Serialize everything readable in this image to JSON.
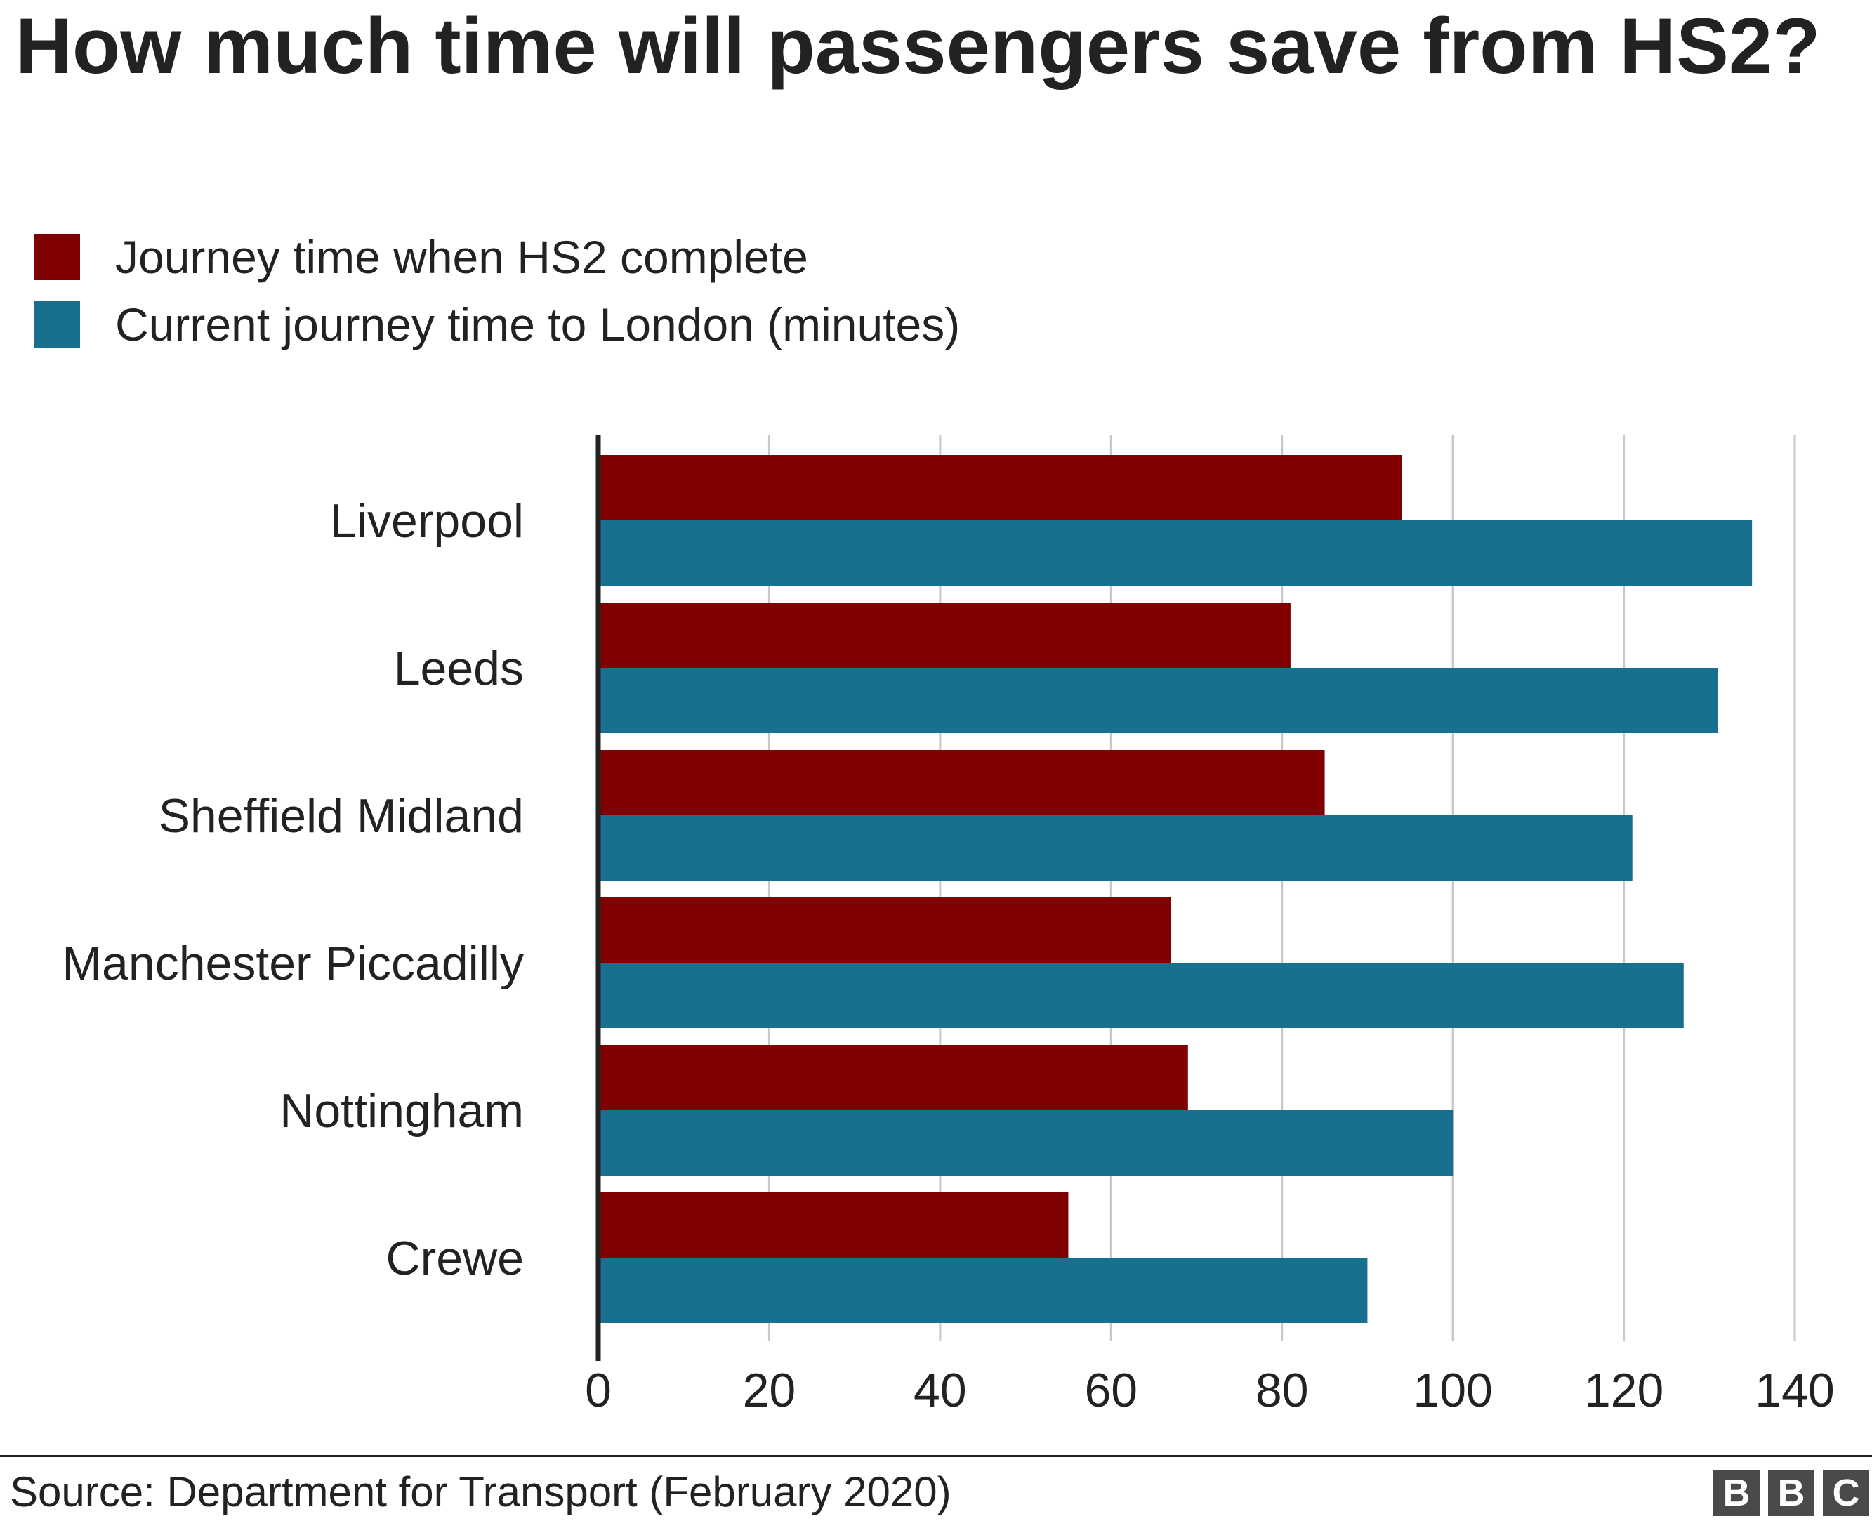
{
  "title": "How much time will passengers save from HS2?",
  "legend": [
    {
      "label": "Journey time when HS2 complete",
      "color": "#800000"
    },
    {
      "label": "Current journey time to London (minutes)",
      "color": "#18708f"
    }
  ],
  "chart_data": {
    "type": "bar",
    "orientation": "horizontal",
    "categories": [
      "Liverpool",
      "Leeds",
      "Sheffield Midland",
      "Manchester Piccadilly",
      "Nottingham",
      "Crewe"
    ],
    "series": [
      {
        "name": "Journey time when HS2 complete",
        "color": "#800000",
        "values": [
          94,
          81,
          85,
          67,
          69,
          55
        ]
      },
      {
        "name": "Current journey time to London (minutes)",
        "color": "#18708f",
        "values": [
          135,
          131,
          121,
          127,
          100,
          90
        ]
      }
    ],
    "xlim": [
      0,
      140
    ],
    "xticks": [
      0,
      20,
      40,
      60,
      80,
      100,
      120,
      140
    ],
    "grid": true,
    "legend_position": "top-left"
  },
  "source": "Source: Department for Transport (February 2020)",
  "logo": [
    "B",
    "B",
    "C"
  ]
}
